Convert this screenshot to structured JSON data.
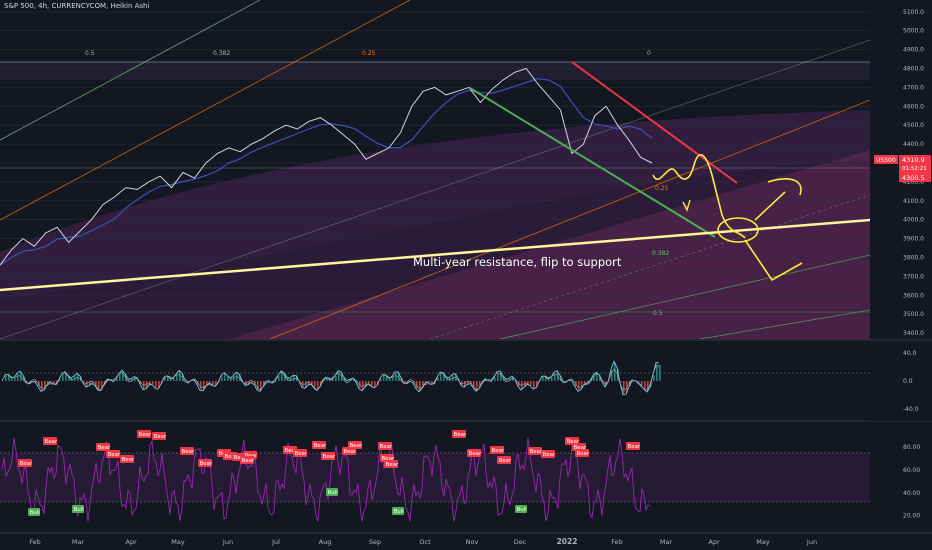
{
  "header": {
    "title": "S&P 500, 4h, CURRENCYCOM, Heikin Ashi"
  },
  "annotation": {
    "text": "Multi-year resistance, flip to support"
  },
  "price_badges": {
    "symbol": "US500",
    "price": "4310.9",
    "countdown": "01:52:21",
    "level": "4300.5"
  },
  "colors": {
    "background": "#131722",
    "bear_label": "#f23645",
    "bull_label": "#4caf50",
    "rsi_line": "#9c27b0",
    "price_badge": "#f23645",
    "annotation_line": "#fff59d",
    "yellow_drawing": "#ffeb3b"
  },
  "chart_data": [
    {
      "type": "line",
      "title": "",
      "x_tick_labels": [
        "Feb",
        "Mar",
        "Apr",
        "May",
        "Jun",
        "Jul",
        "Aug",
        "Sep",
        "Oct",
        "Nov",
        "Dec",
        "2022",
        "Feb",
        "Mar",
        "Apr",
        "May",
        "Jun"
      ],
      "y_tick_labels": [
        "5100.0",
        "5000.0",
        "4900.0",
        "4800.0",
        "4700.0",
        "4600.0",
        "4500.0",
        "4400.0",
        "4300.0",
        "4200.0",
        "4100.0",
        "4000.0",
        "3900.0",
        "3800.0",
        "3700.0",
        "3600.0",
        "3500.0",
        "3400.0"
      ],
      "ylim": [
        3390,
        5120
      ],
      "fib_labels": [
        "0.5",
        "0.382",
        "0.25",
        "0",
        "0.25",
        "0.382",
        "0.5"
      ],
      "series": [
        {
          "values": [
            3760,
            3840,
            3900,
            3860,
            3930,
            3960,
            3880,
            3940,
            4000,
            4080,
            4120,
            4170,
            4160,
            4200,
            4230,
            4170,
            4250,
            4220,
            4300,
            4350,
            4380,
            4360,
            4400,
            4430,
            4470,
            4500,
            4480,
            4520,
            4540,
            4500,
            4450,
            4400,
            4320,
            4350,
            4380,
            4460,
            4600,
            4680,
            4700,
            4660,
            4680,
            4700,
            4620,
            4690,
            4740,
            4780,
            4800,
            4720,
            4650,
            4580,
            4350,
            4400,
            4550,
            4600,
            4500,
            4420,
            4330,
            4300
          ]
        }
      ],
      "trend_lines": [
        {
          "name": "resistance",
          "start": [
            "Feb",
            3640
          ],
          "end": [
            "Jun",
            4010
          ]
        },
        {
          "name": "down-channel-green",
          "start": [
            "Nov",
            4700
          ],
          "end": [
            "Mar",
            3900
          ]
        },
        {
          "name": "down-channel-red",
          "start": [
            "2022",
            4810
          ],
          "end": [
            "Mar",
            4180
          ]
        }
      ]
    },
    {
      "type": "line",
      "y_tick_labels": [
        "40.0",
        "0.0",
        "-40.0"
      ],
      "ylim": [
        -50,
        50
      ]
    },
    {
      "type": "line",
      "y_tick_labels": [
        "80.00",
        "60.00",
        "40.00",
        "20.00"
      ],
      "ylim": [
        10,
        95
      ],
      "signal_labels": {
        "bear": [
          "Bear",
          "Bear",
          "Bear",
          "Bear",
          "Bear",
          "Bear",
          "Bear",
          "Bear",
          "Bear",
          "Bear",
          "Bear",
          "Bear",
          "Bear",
          "Bear",
          "Bear",
          "Bear",
          "Bear",
          "Bear",
          "Bear",
          "Bear",
          "Bear",
          "Bear",
          "Bear",
          "Bear",
          "Bear",
          "Bear",
          "Bear",
          "Bear",
          "Bear",
          "Bear",
          "Bear",
          "Bear",
          "Bear"
        ],
        "bull": [
          "Bull",
          "Bull",
          "Bull",
          "Bull",
          "Bull"
        ]
      }
    }
  ]
}
